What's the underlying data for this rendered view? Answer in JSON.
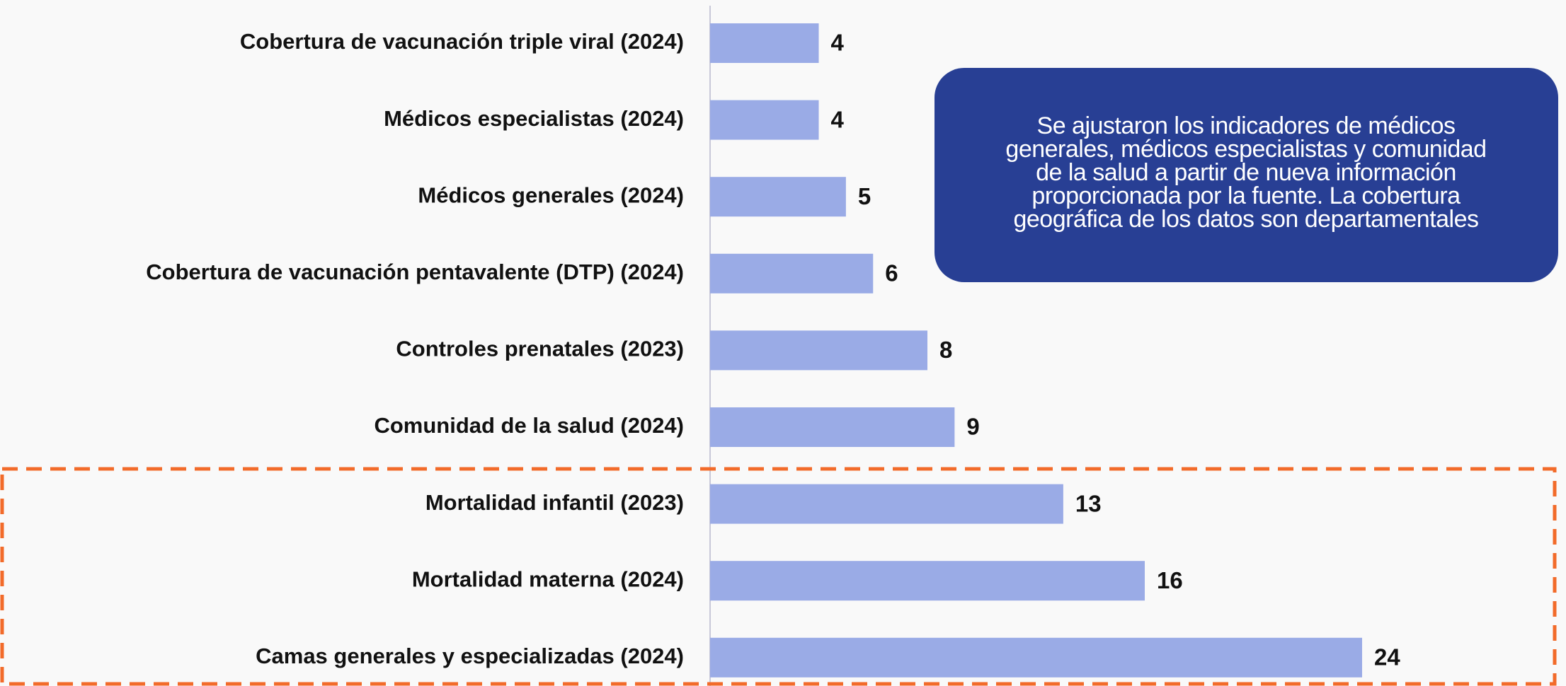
{
  "chart_data": {
    "type": "bar",
    "orientation": "horizontal",
    "categories": [
      "Cobertura de vacunación triple viral (2024)",
      "Médicos especialistas (2024)",
      "Médicos generales (2024)",
      "Cobertura de vacunación pentavalente (DTP) (2024)",
      "Controles prenatales (2023)",
      "Comunidad de la salud (2024)",
      "Mortalidad infantil (2023)",
      "Mortalidad materna (2024)",
      "Camas generales y especializadas (2024)"
    ],
    "values": [
      4,
      4,
      5,
      6,
      8,
      9,
      13,
      16,
      24
    ],
    "color": "#9aabe6",
    "xlim": [
      0,
      24
    ],
    "annotation": [
      "Se ajustaron los indicadores de médicos",
      "generales, médicos especialistas y comunidad",
      "de la salud a partir de nueva información",
      "proporcionada por la fuente. La cobertura",
      "geográfica de los datos son departamentales"
    ]
  }
}
